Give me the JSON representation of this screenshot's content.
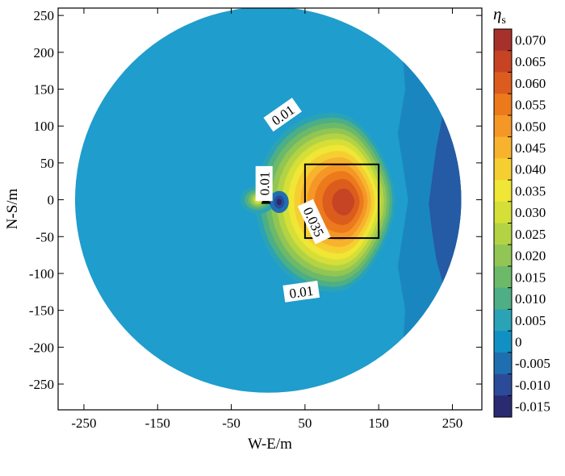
{
  "chart_data": {
    "type": "heatmap",
    "xlabel": "W-E/m",
    "ylabel": "N-S/m",
    "xlim": [
      -285,
      290
    ],
    "ylim": [
      -285,
      260
    ],
    "x_ticks": [
      "-250",
      "-150",
      "-50",
      "50",
      "150",
      "250"
    ],
    "x_tick_values": [
      -250,
      -150,
      -50,
      50,
      150,
      250
    ],
    "y_ticks": [
      "250",
      "200",
      "150",
      "100",
      "50",
      "0",
      "-50",
      "-100",
      "-150",
      "-200",
      "-250"
    ],
    "y_tick_values": [
      250,
      200,
      150,
      100,
      50,
      0,
      -50,
      -100,
      -150,
      -200,
      -250
    ],
    "domain": {
      "shape": "circle",
      "center": [
        0,
        0
      ],
      "radius": 262
    },
    "colorbar": {
      "title": "η",
      "title_subscript": "s",
      "levels": [
        "0.070",
        "0.065",
        "0.060",
        "0.055",
        "0.050",
        "0.045",
        "0.040",
        "0.035",
        "0.030",
        "0.025",
        "0.020",
        "0.015",
        "0.010",
        "0.005",
        "0",
        "-0.005",
        "-0.010",
        "-0.015"
      ],
      "colors": [
        "#a6312a",
        "#c64423",
        "#dc5c1e",
        "#ec7a1c",
        "#f59727",
        "#f8b32e",
        "#f5cf32",
        "#efe635",
        "#d5df38",
        "#b3d344",
        "#91c654",
        "#6db96a",
        "#4eae84",
        "#2aa3b7",
        "#1390c3",
        "#1f6fb0",
        "#2b4b98",
        "#2a2a70"
      ]
    },
    "regions": [
      {
        "label": "background",
        "value": 0.0025,
        "color": "#1f9dcc"
      },
      {
        "label": "east band",
        "value": -0.0025,
        "color": "#1a86bf"
      },
      {
        "label": "east edge",
        "value": -0.0075,
        "color": "#255aa5"
      }
    ],
    "anomaly_peak": {
      "x": 105,
      "y": -3,
      "value": 0.068
    },
    "source_peak": {
      "x": -14,
      "y": 0,
      "value": 0.038
    },
    "source_trough": {
      "x": 15,
      "y": -3,
      "value": -0.012
    },
    "marker": {
      "shape": "triangle",
      "x": -3,
      "y": 0
    },
    "rectangle": {
      "x": [
        50,
        150
      ],
      "y": [
        -52,
        48
      ]
    },
    "contour_labels": [
      {
        "text": "0.01",
        "x": 20,
        "y": 115,
        "rotate": -35
      },
      {
        "text": "0.01",
        "x": -5,
        "y": 22,
        "rotate": -90
      },
      {
        "text": "0.035",
        "x": 62,
        "y": -30,
        "rotate": 65
      },
      {
        "text": "0.01",
        "x": 45,
        "y": -125,
        "rotate": -8
      }
    ]
  }
}
